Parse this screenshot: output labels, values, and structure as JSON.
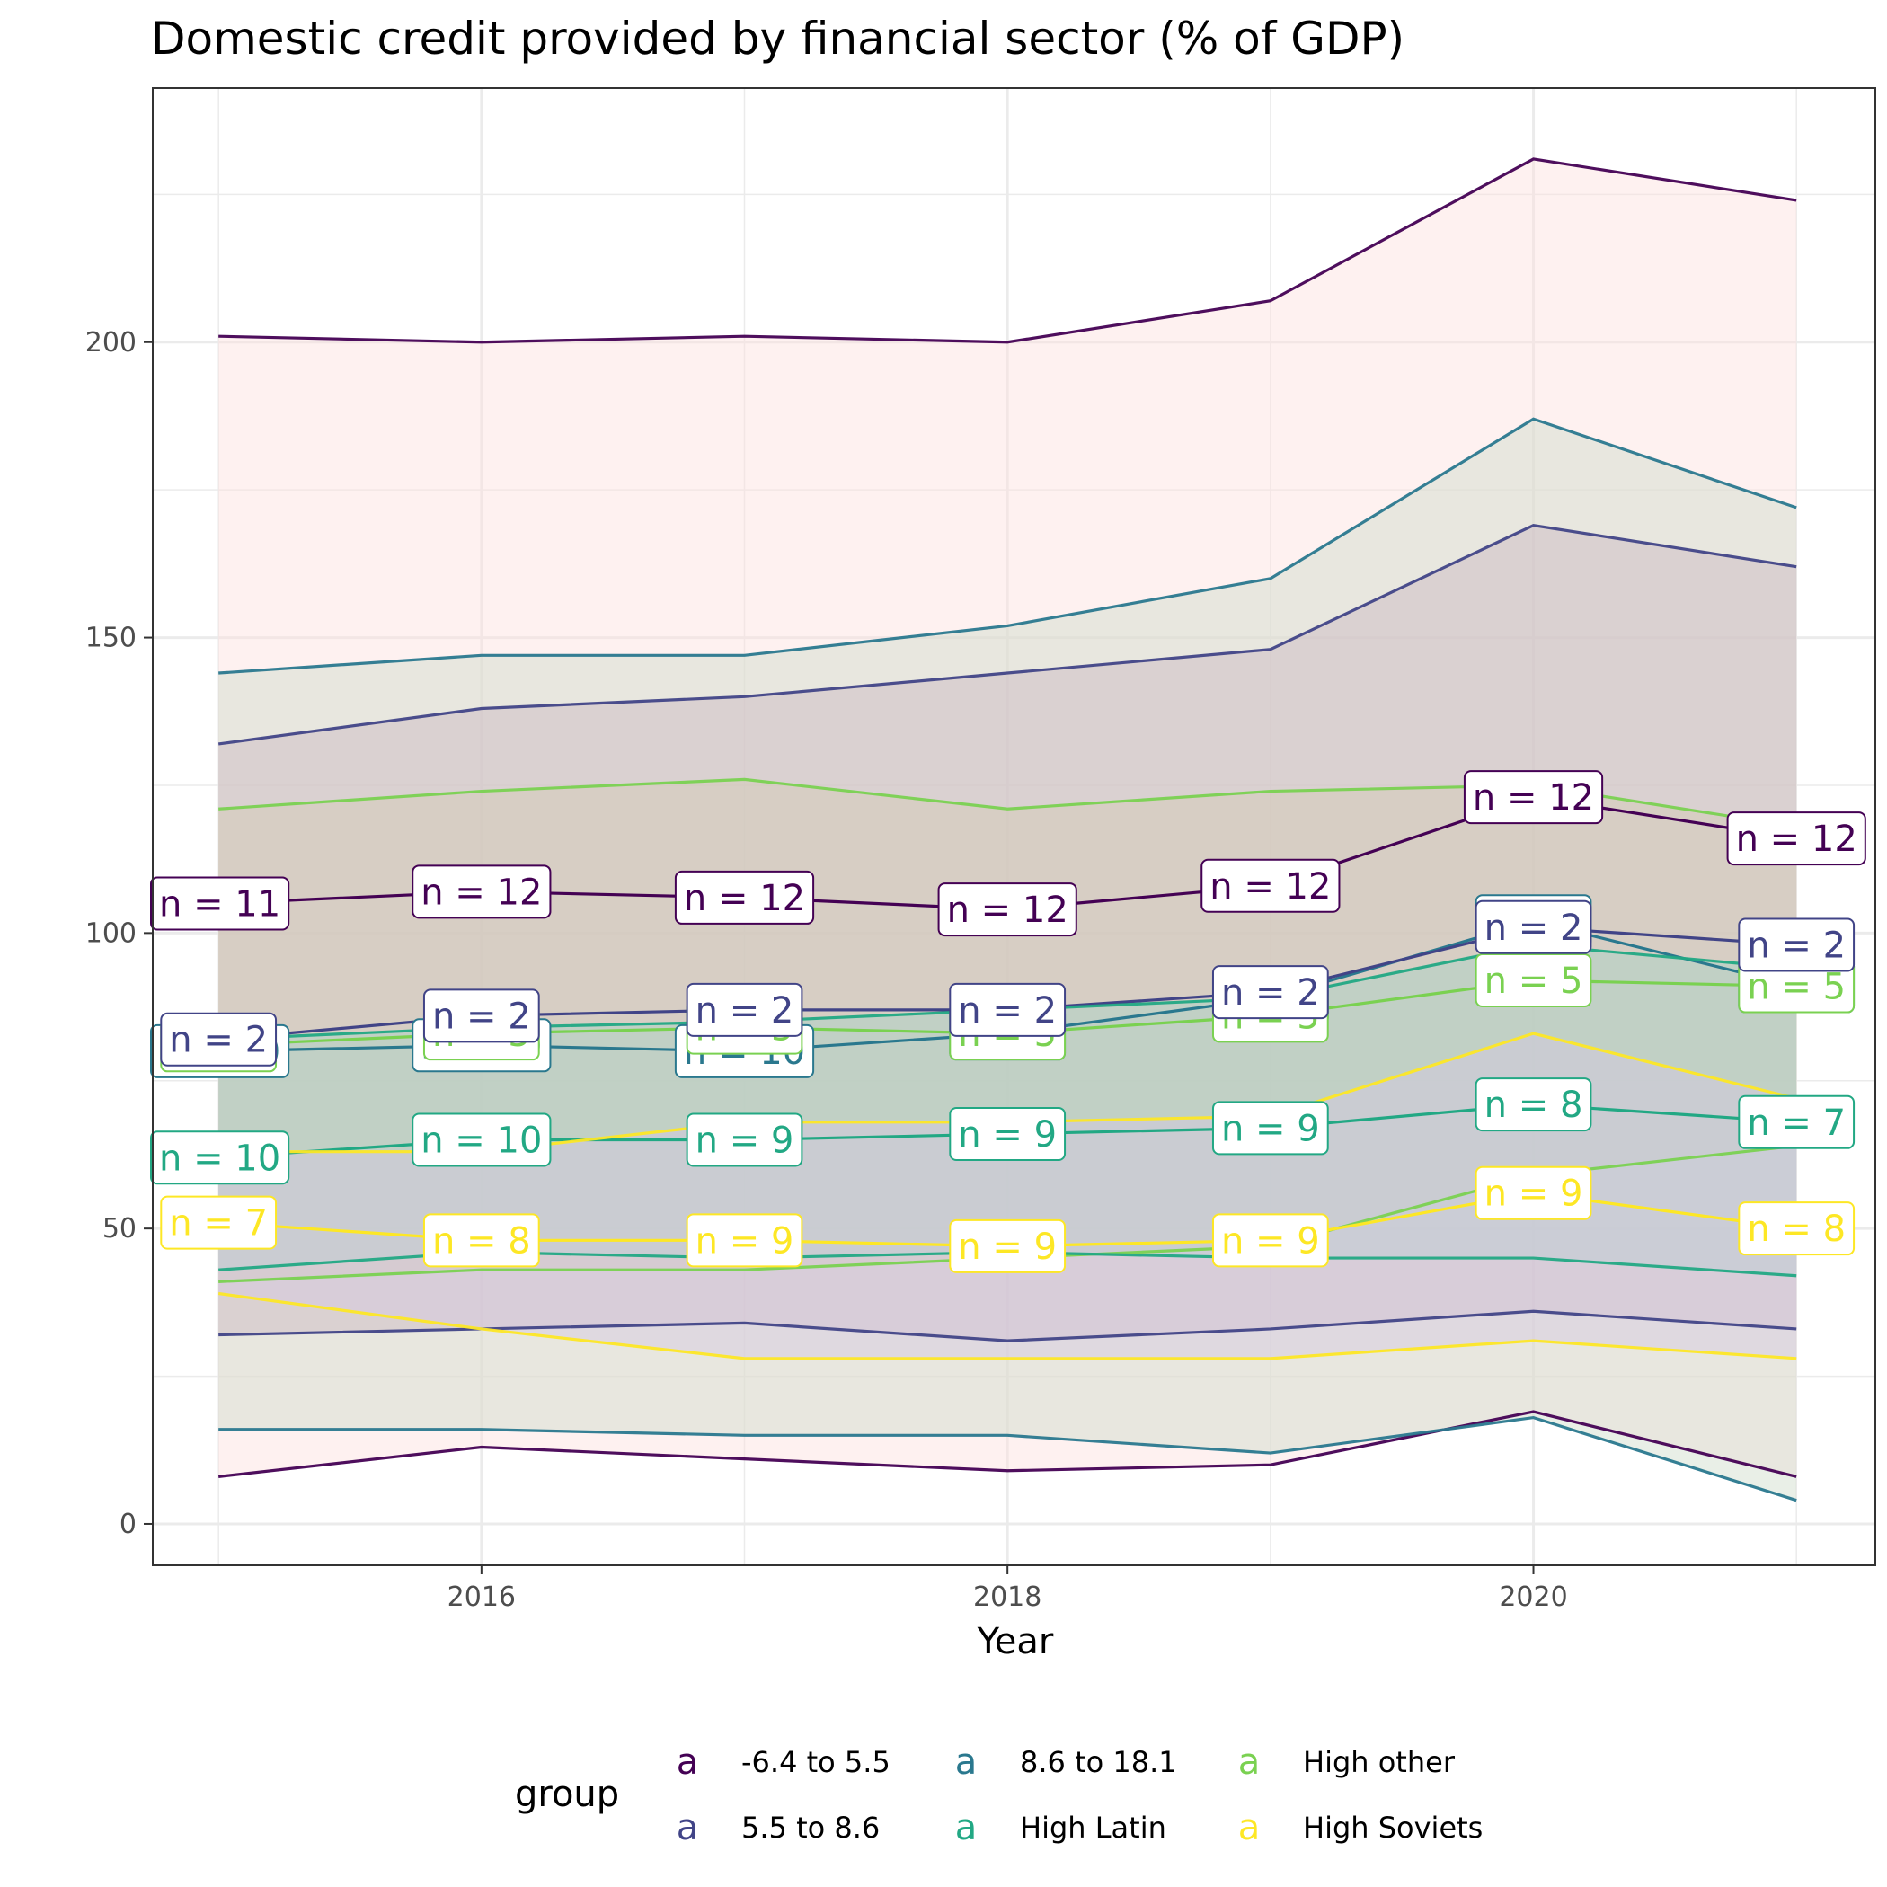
{
  "chart_data": {
    "type": "line",
    "title": "Domestic credit provided by financial sector (% of GDP)",
    "xlabel": "Year",
    "ylabel": "",
    "x": [
      2015,
      2016,
      2017,
      2018,
      2019,
      2020,
      2021
    ],
    "xlim": [
      2014.75,
      2021.3
    ],
    "ylim": [
      -7,
      243
    ],
    "x_ticks": [
      2016,
      2018,
      2020
    ],
    "y_ticks": [
      0,
      50,
      100,
      150,
      200
    ],
    "grid": true,
    "legend": {
      "title": "group",
      "position": "bottom",
      "key_glyph": "a",
      "entries": [
        "-6.4 to 5.5",
        "5.5 to 8.6",
        "8.6 to 18.1",
        "High Latin",
        "High other",
        "High Soviets"
      ]
    },
    "series": [
      {
        "name": "-6.4 to 5.5",
        "color": "#440154",
        "fill": "#fde0dd",
        "values": [
          105,
          107,
          106,
          104,
          108,
          123,
          116
        ],
        "upper": [
          201,
          200,
          201,
          200,
          207,
          231,
          224
        ],
        "lower": [
          8,
          13,
          11,
          9,
          10,
          19,
          8
        ],
        "n": [
          "n = 11",
          "n = 12",
          "n = 12",
          "n = 12",
          "n = 12",
          "n = 12",
          "n = 12"
        ]
      },
      {
        "name": "8.6 to 18.1",
        "color": "#2a788e",
        "fill": "#cfdcc9",
        "values": [
          80,
          81,
          80,
          83,
          89,
          102,
          91
        ],
        "upper": [
          144,
          147,
          147,
          152,
          160,
          187,
          172
        ],
        "lower": [
          16,
          16,
          15,
          15,
          12,
          18,
          4
        ],
        "n": [
          "n = 10",
          "n = 10",
          "n = 10",
          "n = 9",
          "n = 9",
          "n = 8",
          "n = 8"
        ]
      },
      {
        "name": "High other",
        "color": "#7ad151",
        "fill": "#dcdcaa",
        "values": [
          81,
          83,
          84,
          83,
          86,
          92,
          91
        ],
        "upper": [
          121,
          124,
          126,
          121,
          124,
          125,
          118
        ],
        "lower": [
          41,
          43,
          43,
          45,
          47,
          59,
          64
        ],
        "n": [
          "n = 5",
          "n = 5",
          "n = 5",
          "n = 5",
          "n = 5",
          "n = 5",
          "n = 5"
        ]
      },
      {
        "name": "5.5 to 8.6",
        "color": "#414487",
        "fill": "#c9b5c2",
        "values": [
          82,
          86,
          87,
          87,
          90,
          101,
          98
        ],
        "upper": [
          132,
          138,
          140,
          144,
          148,
          169,
          162
        ],
        "lower": [
          32,
          33,
          34,
          31,
          33,
          36,
          33
        ],
        "n": [
          "n = 2",
          "n = 2",
          "n = 2",
          "n = 2",
          "n = 2",
          "n = 2",
          "n = 2"
        ]
      },
      {
        "name": "High Latin",
        "color": "#22a884",
        "fill": "#a7d3c8",
        "values": [
          62,
          65,
          65,
          66,
          67,
          71,
          68
        ],
        "upper": [
          82,
          84,
          85,
          87,
          89,
          98,
          94
        ],
        "lower": [
          43,
          46,
          45,
          46,
          45,
          45,
          42
        ],
        "n": [
          "n = 10",
          "n = 10",
          "n = 9",
          "n = 9",
          "n = 9",
          "n = 8",
          "n = 7"
        ]
      },
      {
        "name": "High Soviets",
        "color": "#fde725",
        "fill": "#d5c7e3",
        "values": [
          51,
          48,
          48,
          47,
          48,
          56,
          50
        ],
        "upper": [
          63,
          63,
          68,
          68,
          69,
          83,
          72
        ],
        "lower": [
          39,
          33,
          28,
          28,
          28,
          31,
          28
        ],
        "n": [
          "n = 7",
          "n = 8",
          "n = 9",
          "n = 9",
          "n = 9",
          "n = 9",
          "n = 8"
        ]
      }
    ]
  }
}
